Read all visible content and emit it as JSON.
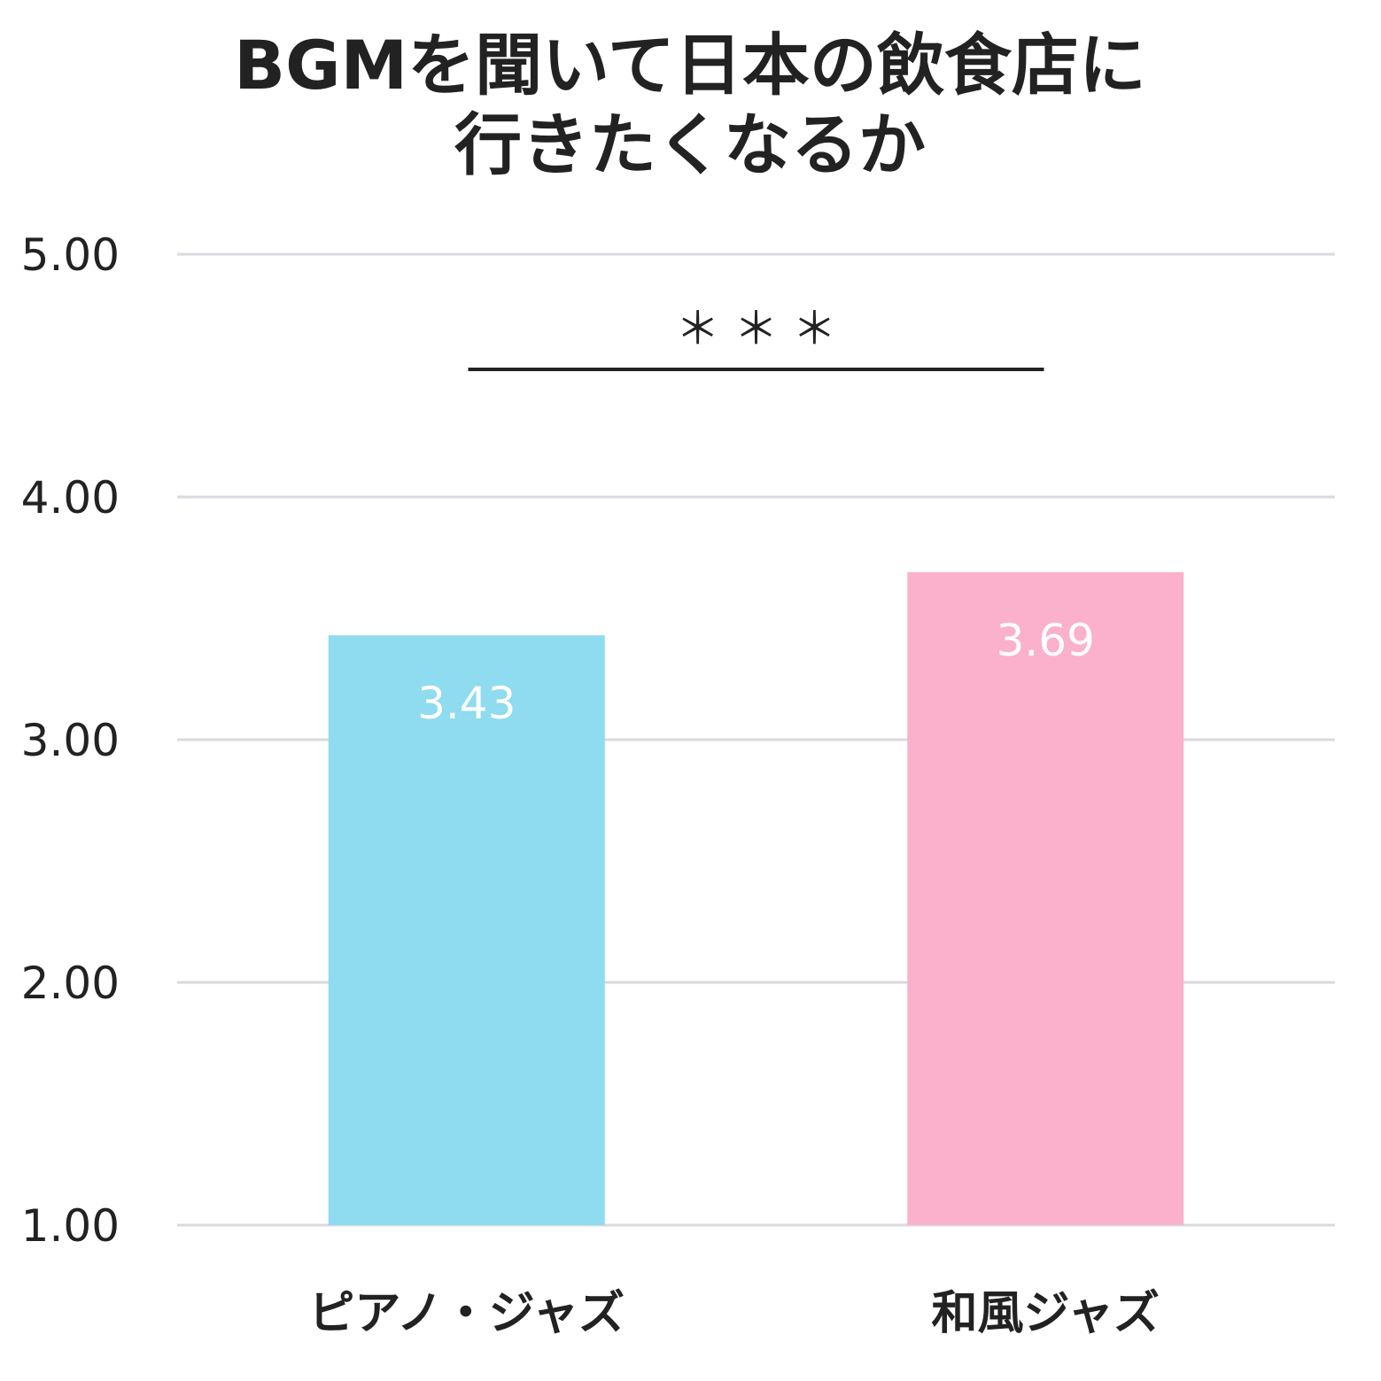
{
  "chart_data": {
    "type": "bar",
    "title_lines": [
      "BGMを聞いて日本の飲食店に",
      "行きたくなるか"
    ],
    "categories": [
      "ピアノ・ジャズ",
      "和風ジャズ"
    ],
    "values": [
      3.43,
      3.69
    ],
    "value_labels": [
      "3.43",
      "3.69"
    ],
    "colors": [
      "#8fdbef",
      "#fbb0cb"
    ],
    "ylim": [
      1.0,
      5.0
    ],
    "yticks": [
      "1.00",
      "2.00",
      "3.00",
      "4.00",
      "5.00"
    ],
    "grid": true,
    "significance": {
      "label": "＊ ＊ ＊",
      "between": [
        0,
        1
      ]
    }
  }
}
